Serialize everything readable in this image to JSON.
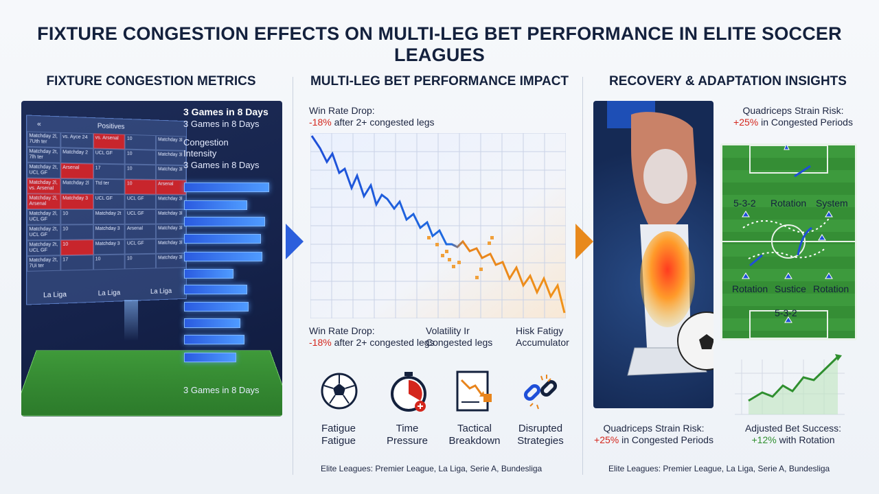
{
  "title": "FIXTURE CONGESTION EFFECTS ON MULTI-LEG BET PERFORMANCE IN ELITE SOCCER LEAGUES",
  "columns": {
    "left": "FIXTURE CONGESTION METRICS",
    "middle": "MULTI-LEG BET PERFORMANCE IMPACT",
    "right": "RECOVERY & ADAPTATION INSIGHTS"
  },
  "left_panel": {
    "calendar_header": "Positives",
    "calendar_nav": "«",
    "calendar_cells": [
      "Matchday 2l, 7Uth ter",
      "vs. Ayce 24",
      "vs. Arsenal",
      "10",
      "Matchday 3l",
      "Matchday 2t, 7lh ter",
      "Matchday 2",
      "UCL GF",
      "10",
      "Matchday 3l",
      "Matchday 2t, UCL GF",
      "Arsenal",
      "17",
      "10",
      "Matchday 3l",
      "Matchday 2l, vs. Arsenal",
      "Matchday 2l",
      "Ttd ter",
      "10",
      "Arsenal",
      "Matchday 2l, Arsenal",
      "Matchday 3",
      "UCL GF",
      "UCL GF",
      "Matchday 3l",
      "Matchday 2l, UCL GF",
      "10",
      "Matchday 2t",
      "UCL GF",
      "Matchday 3l",
      "Matchday 2t, UCL GF",
      "10",
      "Matchday 3",
      "Arsenal",
      "Matchday 3l",
      "Matchday 2t, UCL GF",
      "10",
      "Matchday 3",
      "UCL GF",
      "Matchday 3l",
      "Matchday 2t, 7Ui ter",
      "17",
      "10",
      "10",
      "Matchday 3l"
    ],
    "calendar_red_cells": [
      2,
      11,
      15,
      18,
      19,
      20,
      21,
      36
    ],
    "calendar_footer": [
      "La Liga",
      "La Liga",
      "La Liga"
    ],
    "metric_top_bold": "3 Games in 8 Days",
    "metric_top": "3 Games in 8 Days",
    "metric_intensity_1": "Congestion",
    "metric_intensity_2": "Intensity",
    "metric_intensity_3": "3 Games in 8 Days",
    "metric_bottom": "3 Games in 8 Days"
  },
  "middle_panel": {
    "top_label_1": "Win Rate Drop:",
    "top_label_red": "-18%",
    "top_label_rest": " after 2+ congested legs",
    "bottom_labels": [
      {
        "l1": "Win Rate Drop:",
        "red": "-18%",
        "l2": " after 2+ congested legs"
      },
      {
        "l1": "Volatility Ir",
        "red": "",
        "l2": "Congested legs"
      },
      {
        "l1": "Hisk Fatigy",
        "red": "",
        "l2": "Accumulator"
      }
    ],
    "icons": [
      {
        "l1": "Fatigue",
        "l2": "Fatigue"
      },
      {
        "l1": "Time",
        "l2": "Pressure"
      },
      {
        "l1": "Tactical",
        "l2": "Breakdown"
      },
      {
        "l1": "Disrupted",
        "l2": "Strategies"
      }
    ],
    "footer": "Elite Leagues: Premier League, La Liga, Serie A, Bundesliga"
  },
  "right_panel": {
    "top_label_1": "Quadriceps Strain Risk:",
    "top_label_red": "+25%",
    "top_label_rest": " in Congested Periods",
    "pitch_labels": {
      "formation_top": "5-3-2",
      "rotation_top": "Rotation",
      "system": "System",
      "rotation_left": "Rotation",
      "sustice": "Sustice",
      "rotation_right": "Rotation",
      "formation_bottom": "5-3-2"
    },
    "bottom_left_1": "Quadriceps Strain Risk:",
    "bottom_left_red": "+25%",
    "bottom_left_rest": " in Congested Periods",
    "bottom_right_1": "Adjusted Bet Success:",
    "bottom_right_green": "+12%",
    "bottom_right_rest": " with Rotation",
    "footer": "Elite Leagues: Premier League, La Liga, Serie A, Bundesliga"
  },
  "colors": {
    "navy": "#14213d",
    "red": "#d4261c",
    "blue_line": "#1f4fd8",
    "orange_line": "#e8841c",
    "green": "#2f8f2f"
  }
}
